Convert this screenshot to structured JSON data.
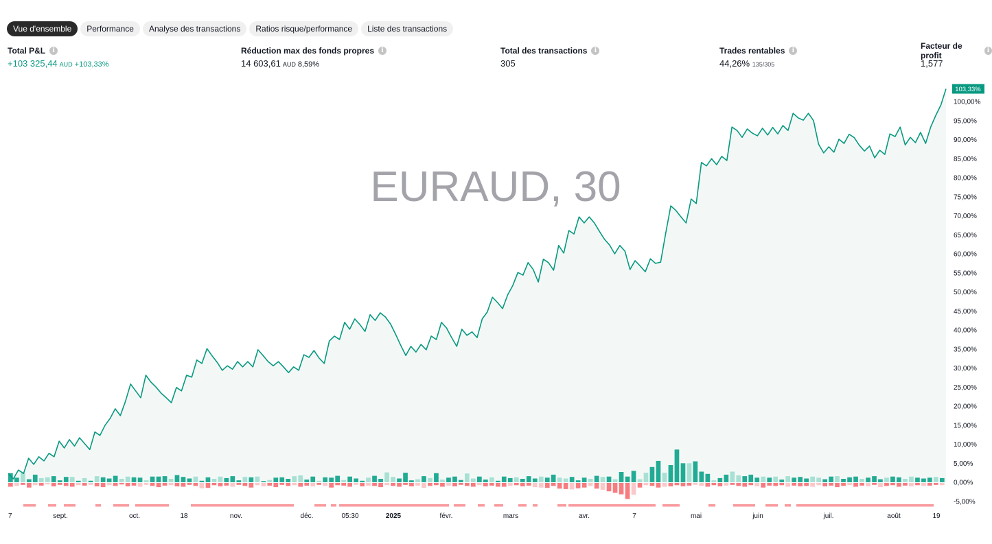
{
  "tabs": [
    {
      "label": "Vue d'ensemble",
      "active": true
    },
    {
      "label": "Performance"
    },
    {
      "label": "Analyse des transactions"
    },
    {
      "label": "Ratios risque/performance"
    },
    {
      "label": "Liste des transactions"
    }
  ],
  "stats": {
    "total_pnl": {
      "label": "Total P&L",
      "value": "+103 325,44",
      "currency": "AUD",
      "pct": "+103,33%"
    },
    "max_drawdown": {
      "label": "Réduction max des fonds propres",
      "value": "14 603,61",
      "currency": "AUD",
      "pct": "8,59%"
    },
    "total_trades": {
      "label": "Total des transactions",
      "value": "305"
    },
    "profitable": {
      "label": "Trades rentables",
      "value": "44,26%",
      "ratio": "135/305"
    },
    "profit_factor": {
      "label": "Facteur de profit",
      "value": "1,577"
    }
  },
  "icons": {
    "info": "info-icon"
  },
  "colors": {
    "equity": "#089981",
    "fill": "#f3f8f6",
    "runup": "#22ab94",
    "runup_light": "#a8e0d4",
    "drawdown": "#f77c80",
    "drawdown_light": "#fbc8ca",
    "badge": "#089981"
  },
  "chart_data": {
    "type": "line",
    "watermark": "EURAUD, 30",
    "ylim": [
      -6,
      104
    ],
    "ytick_labels": [
      "-5,00%",
      "0,00%",
      "5,00%",
      "10,00%",
      "15,00%",
      "20,00%",
      "25,00%",
      "30,00%",
      "35,00%",
      "40,00%",
      "45,00%",
      "50,00%",
      "55,00%",
      "60,00%",
      "65,00%",
      "70,00%",
      "75,00%",
      "80,00%",
      "85,00%",
      "90,00%",
      "95,00%",
      "100,00%"
    ],
    "xtick_labels": [
      "7",
      "sept.",
      "oct.",
      "18",
      "nov.",
      "déc.",
      "05:30",
      "2025",
      "févr.",
      "mars",
      "avr.",
      "7",
      "mai",
      "juin",
      "juil.",
      "août",
      "19"
    ],
    "last_value_label": "103,33%",
    "equity_pct": [
      2.3,
      0.9,
      3.2,
      2.3,
      6.3,
      4.7,
      6.7,
      5.6,
      7.6,
      6.7,
      10.8,
      9.0,
      11.2,
      9.5,
      11.7,
      10.1,
      8.6,
      13.2,
      12.3,
      15.0,
      16.8,
      19.3,
      17.5,
      21.3,
      25.8,
      24.0,
      22.2,
      28.1,
      26.3,
      25.0,
      23.4,
      22.2,
      20.9,
      24.9,
      24.0,
      28.1,
      27.6,
      32.1,
      31.2,
      35.1,
      33.2,
      31.5,
      29.4,
      30.6,
      29.7,
      31.7,
      30.3,
      31.7,
      30.3,
      34.8,
      33.3,
      31.7,
      30.6,
      31.7,
      30.3,
      28.8,
      30.3,
      29.4,
      33.5,
      32.8,
      34.6,
      32.6,
      31.2,
      37.1,
      38.4,
      37.5,
      42.0,
      40.2,
      42.9,
      41.4,
      39.6,
      44.0,
      42.5,
      44.5,
      43.4,
      41.6,
      38.9,
      36.0,
      33.3,
      35.7,
      34.2,
      36.2,
      34.8,
      38.4,
      37.5,
      42.0,
      40.5,
      38.0,
      35.7,
      40.2,
      38.6,
      39.5,
      38.0,
      42.9,
      44.7,
      48.6,
      47.2,
      45.6,
      49.2,
      51.7,
      55.1,
      54.4,
      57.7,
      55.9,
      52.6,
      58.6,
      57.7,
      55.7,
      62.2,
      60.2,
      66.1,
      65.2,
      69.7,
      68.1,
      69.7,
      68.1,
      65.9,
      63.8,
      62.3,
      60.0,
      62.2,
      60.7,
      55.9,
      58.2,
      56.8,
      55.3,
      58.7,
      57.5,
      57.8,
      65.4,
      72.6,
      71.4,
      69.7,
      68.1,
      74.4,
      73.2,
      84.0,
      83.1,
      85.0,
      83.4,
      85.6,
      84.5,
      93.3,
      92.4,
      90.6,
      92.8,
      91.7,
      91.0,
      93.0,
      91.2,
      93.2,
      91.5,
      93.7,
      92.4,
      96.9,
      95.7,
      95.1,
      96.9,
      95.0,
      88.8,
      86.5,
      88.1,
      86.7,
      90.1,
      89.0,
      91.4,
      90.5,
      88.5,
      87.0,
      88.3,
      85.2,
      87.2,
      86.1,
      91.5,
      90.8,
      93.3,
      88.6,
      90.6,
      89.2,
      91.9,
      89.0,
      93.3,
      96.4,
      99.1,
      103.33
    ],
    "runup_pct": [
      2.4,
      1.2,
      2.5,
      0.8,
      2.0,
      1.1,
      1.3,
      1.6,
      0.5,
      1.4,
      1.4,
      0.4,
      1.1,
      0.4,
      1.6,
      1.3,
      1.0,
      1.7,
      0.9,
      1.5,
      1.3,
      1.2,
      0.5,
      1.5,
      1.5,
      1.6,
      0.9,
      1.9,
      1.4,
      1.0,
      1.5,
      0.4,
      1.3,
      0.9,
      1.5,
      1.1,
      1.6,
      0.5,
      1.4,
      1.3,
      1.5,
      0.3,
      0.6,
      1.2,
      1.3,
      0.9,
      1.6,
      1.8,
      0.7,
      1.5,
      0.4,
      1.3,
      1.2,
      1.7,
      0.6,
      1.5,
      1.0,
      0.4,
      1.2,
      1.7,
      0.9,
      2.6,
      1.4,
      1.0,
      2.5,
      0.5,
      0.8,
      1.6,
      1.1,
      2.4,
      0.7,
      1.2,
      1.5,
      0.6,
      2.3,
      1.0,
      1.5,
      0.7,
      1.3,
      0.4,
      1.5,
      1.1,
      1.3,
      0.9,
      1.6,
      1.0,
      1.5,
      1.2,
      2.0,
      1.2,
      1.0,
      1.4,
      0.5,
      1.2,
      0.9,
      1.7,
      1.4,
      1.5,
      0.8,
      2.7,
      1.5,
      3.0,
      0.8,
      2.5,
      4.0,
      5.6,
      2.5,
      4.5,
      8.6,
      5.0,
      5.0,
      5.5,
      2.8,
      2.2,
      0.5,
      1.1,
      2.0,
      2.8,
      1.8,
      1.6,
      2.0,
      1.2,
      1.5,
      1.2,
      1.5,
      0.7,
      1.6,
      1.2,
      1.4,
      1.0,
      1.5,
      1.2,
      0.8,
      1.5,
      1.6,
      0.9,
      1.3,
      1.5,
      0.9,
      1.2,
      1.6,
      0.8,
      1.2,
      1.5,
      1.3,
      0.9,
      1.5,
      1.2,
      1.0,
      1.2,
      1.4,
      1.1
    ],
    "drawdown_pct": [
      -1.0,
      -0.8,
      -0.5,
      -1.2,
      -0.6,
      -0.7,
      -0.4,
      -0.9,
      -0.5,
      -0.8,
      -1.0,
      -0.6,
      -0.7,
      -0.5,
      -0.9,
      -1.1,
      -0.6,
      -0.8,
      -0.4,
      -0.9,
      -0.7,
      -1.0,
      -0.5,
      -0.8,
      -1.1,
      -0.7,
      -0.6,
      -0.9,
      -1.0,
      -0.5,
      -0.8,
      -1.4,
      -1.3,
      -0.6,
      -0.9,
      -0.7,
      -1.0,
      -0.5,
      -0.8,
      -1.2,
      -0.6,
      -0.9,
      -0.7,
      -1.1,
      -0.5,
      -0.8,
      -0.6,
      -1.0,
      -0.7,
      -0.9,
      -0.5,
      -0.8,
      -1.2,
      -0.6,
      -0.7,
      -1.0,
      -0.5,
      -0.9,
      -0.7,
      -0.8,
      -1.1,
      -0.6,
      -0.8,
      -1.0,
      -0.5,
      -0.9,
      -0.7,
      -1.3,
      -0.8,
      -0.6,
      -1.0,
      -0.7,
      -0.9,
      -0.5,
      -0.8,
      -1.0,
      -0.6,
      -0.9,
      -0.7,
      -1.0,
      -1.0,
      -0.8,
      -0.6,
      -0.9,
      -0.7,
      -1.1,
      -1.2,
      -1.3,
      -0.8,
      -1.5,
      -1.6,
      -1.7,
      -1.4,
      -1.2,
      -0.8,
      -1.5,
      -1.8,
      -2.2,
      -2.6,
      -3.0,
      -4.2,
      -3.1,
      -1.2,
      -0.6,
      -0.8,
      -1.2,
      -1.0,
      -0.9,
      -0.6,
      -0.9,
      -0.7,
      -0.5,
      -0.8,
      -1.0,
      -0.6,
      -0.9,
      -0.7,
      -0.5,
      -0.8,
      -1.0,
      -0.6,
      -0.9,
      -1.2,
      -0.7,
      -0.8,
      -0.6,
      -1.0,
      -0.7,
      -0.9,
      -0.8,
      -1.0,
      -0.6,
      -0.9,
      -0.7,
      -1.1,
      -0.8,
      -0.6,
      -1.0,
      -0.7,
      -0.9,
      -0.5,
      -1.1,
      -0.8,
      -0.6,
      -1.0,
      -0.7,
      -0.9,
      -0.6,
      -0.8,
      -0.7,
      -0.5,
      -0.6
    ]
  }
}
